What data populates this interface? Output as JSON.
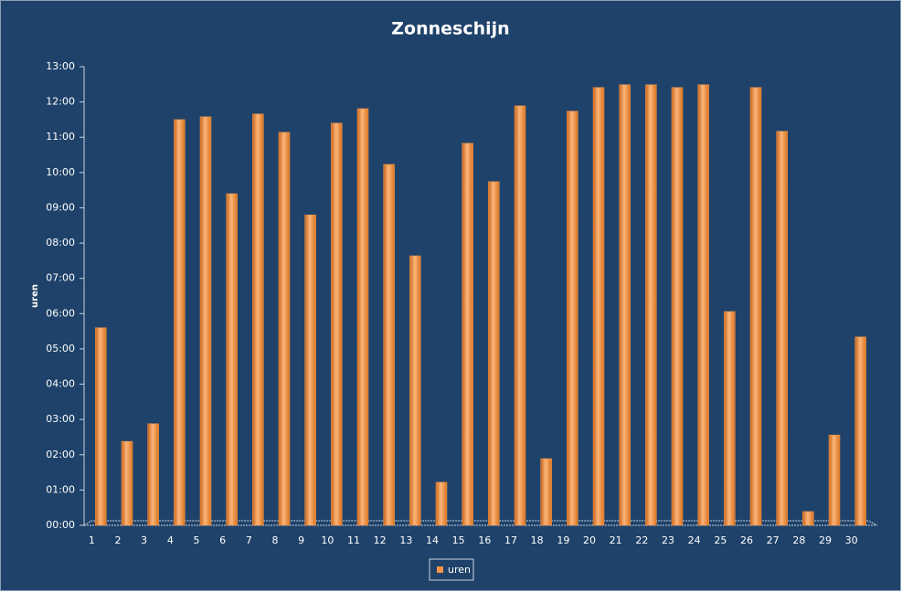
{
  "chart_data": {
    "type": "bar",
    "title": "Zonneschijn",
    "y_label": "uren",
    "categories": [
      "1",
      "2",
      "3",
      "4",
      "5",
      "6",
      "7",
      "8",
      "9",
      "10",
      "11",
      "12",
      "13",
      "14",
      "15",
      "16",
      "17",
      "18",
      "19",
      "20",
      "21",
      "22",
      "23",
      "24",
      "25",
      "26",
      "27",
      "28",
      "29",
      "30"
    ],
    "series": [
      {
        "name": "uren",
        "color": "#f79646",
        "values": [
          5.6,
          2.38,
          2.88,
          11.5,
          11.58,
          9.4,
          11.66,
          11.14,
          8.8,
          11.4,
          11.81,
          10.23,
          7.64,
          1.22,
          10.83,
          9.74,
          11.89,
          1.89,
          11.74,
          12.41,
          12.49,
          12.49,
          12.41,
          12.49,
          6.06,
          12.41,
          11.17,
          0.39,
          2.56,
          5.34
        ]
      }
    ],
    "ylim": [
      0,
      13
    ],
    "yticks": [
      {
        "value": 0,
        "label": "00:00"
      },
      {
        "value": 1,
        "label": "01:00"
      },
      {
        "value": 2,
        "label": "02:00"
      },
      {
        "value": 3,
        "label": "03:00"
      },
      {
        "value": 4,
        "label": "04:00"
      },
      {
        "value": 5,
        "label": "05:00"
      },
      {
        "value": 6,
        "label": "06:00"
      },
      {
        "value": 7,
        "label": "07:00"
      },
      {
        "value": 8,
        "label": "08:00"
      },
      {
        "value": 9,
        "label": "09:00"
      },
      {
        "value": 10,
        "label": "10:00"
      },
      {
        "value": 11,
        "label": "11:00"
      },
      {
        "value": 12,
        "label": "12:00"
      },
      {
        "value": 13,
        "label": "13:00"
      }
    ],
    "grid": false
  }
}
